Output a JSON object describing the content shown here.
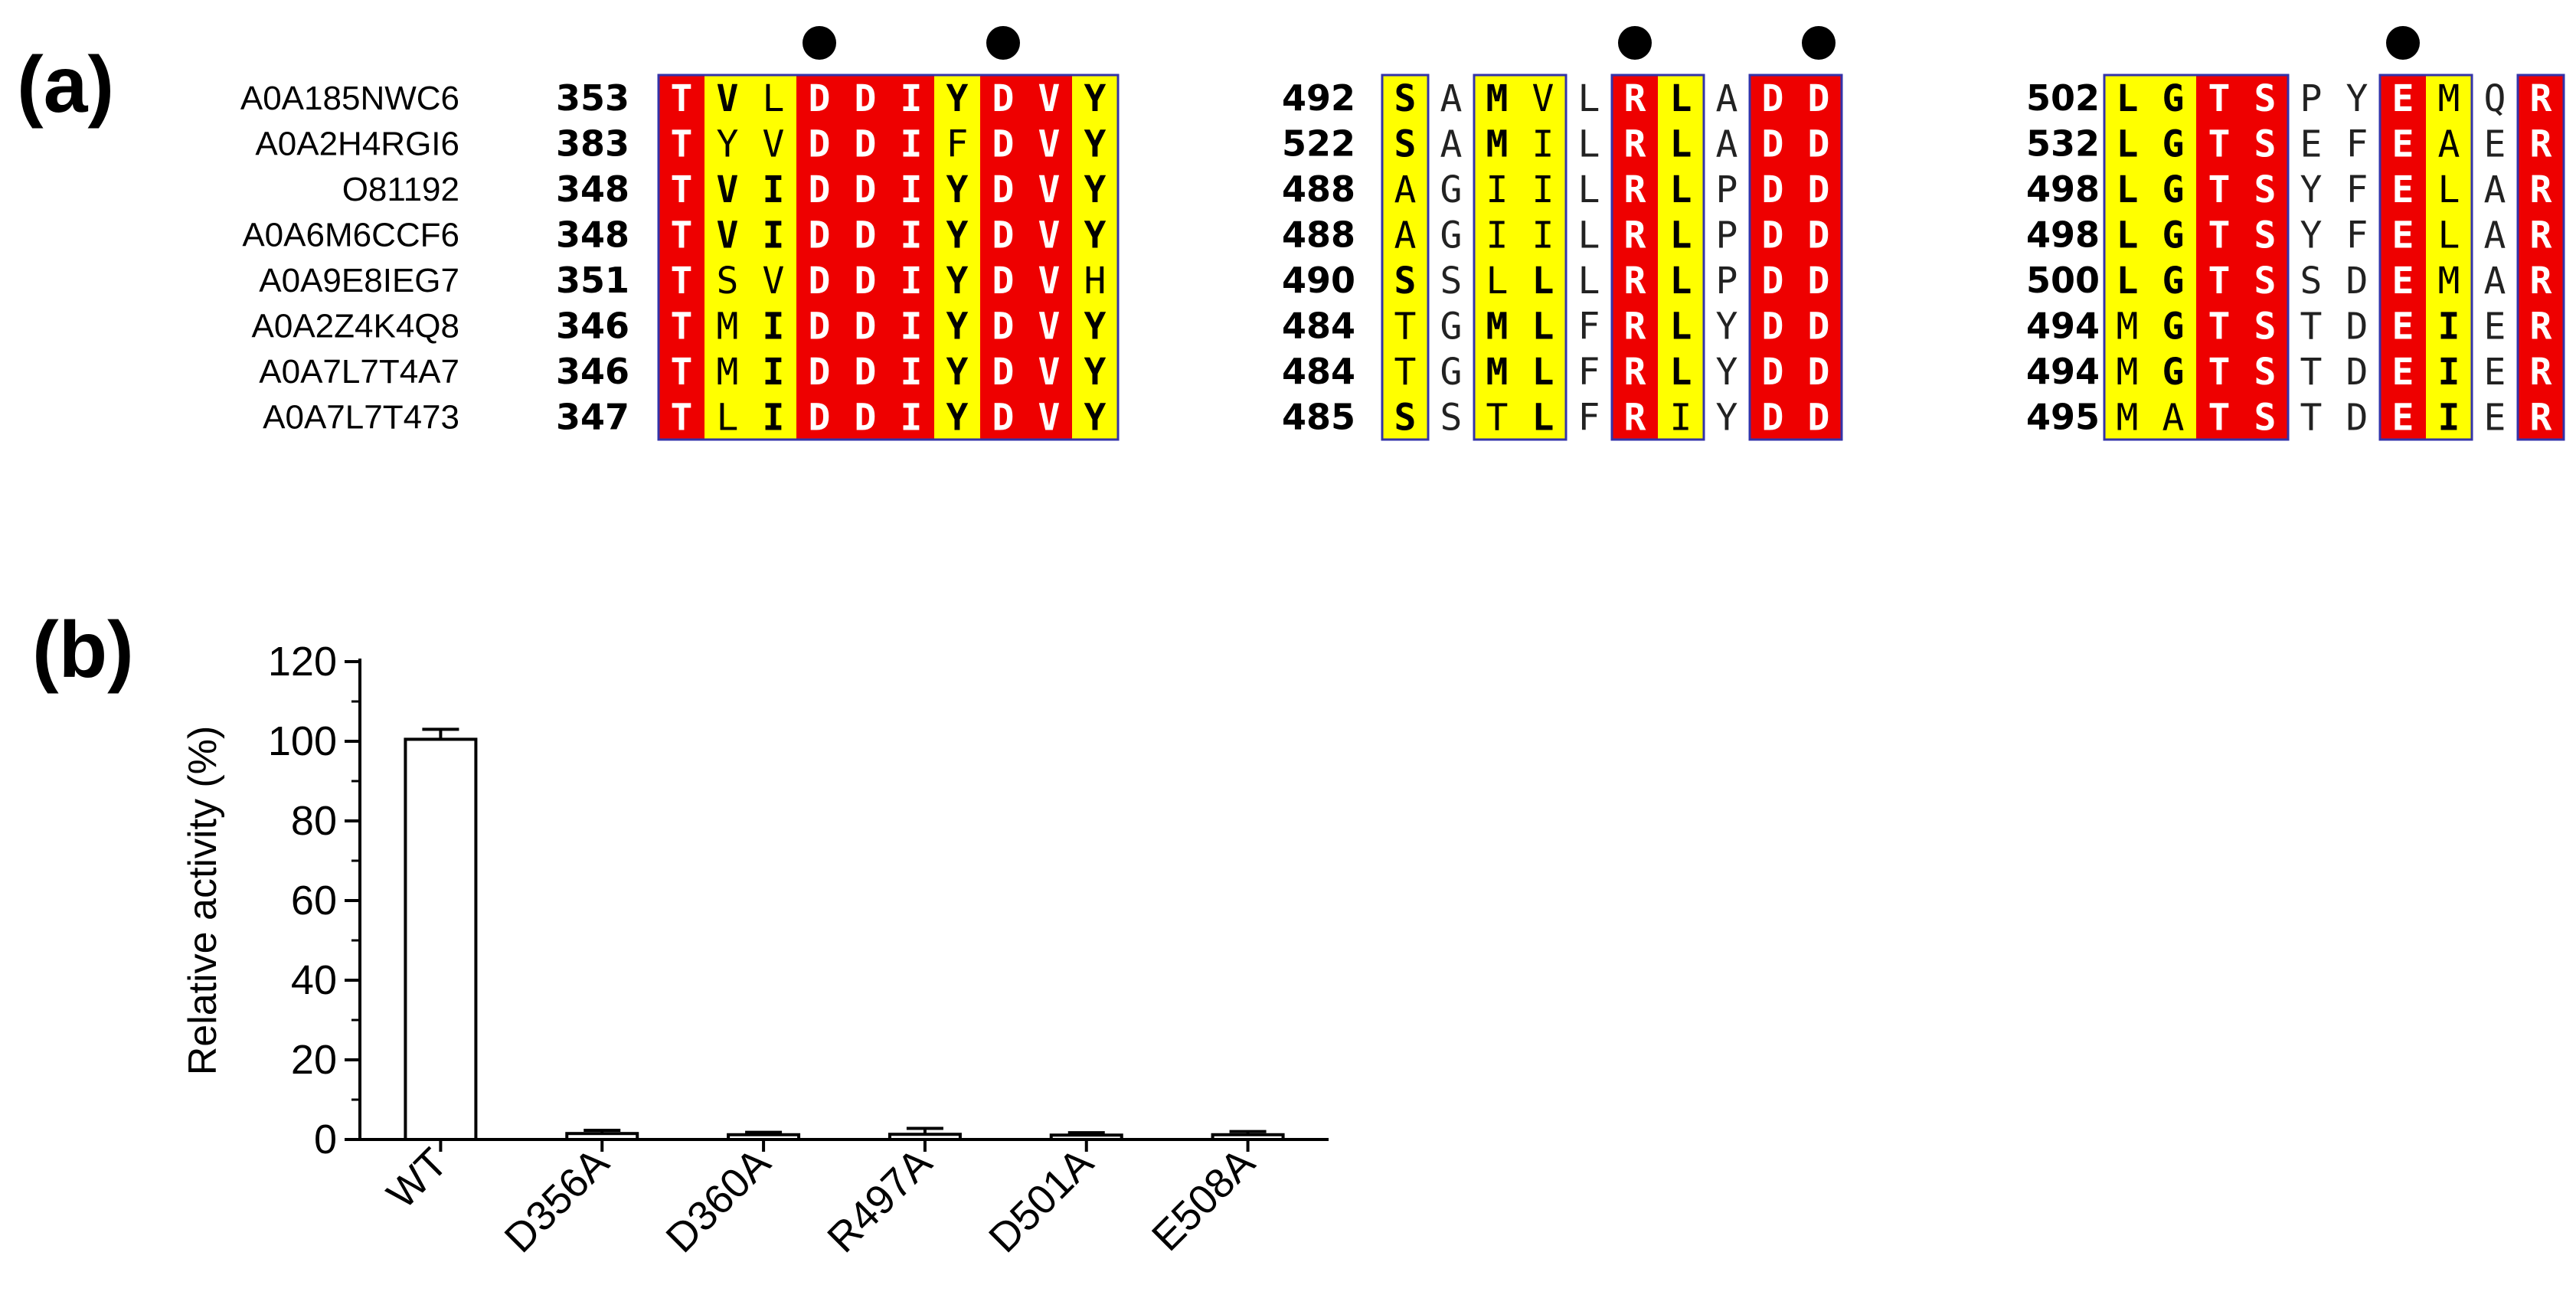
{
  "panel_a": {
    "label": "(a)",
    "species": [
      "A0A185NWC6",
      "A0A2H4RGI6",
      "O81192",
      "A0A6M6CCF6",
      "A0A9E8IEG7",
      "A0A2Z4K4Q8",
      "A0A7L7T4A7",
      "A0A7L7T473"
    ],
    "blocks": [
      {
        "positions": [
          "353",
          "383",
          "348",
          "348",
          "351",
          "346",
          "346",
          "347"
        ],
        "sequences": [
          "TVLDDIYDVY",
          "TYVDDIFDVY",
          "TVIDDIYDVY",
          "TVIDDIYDVY",
          "TSVDDIYDVH",
          "TMIDDIYDVY",
          "TMIDDIYDVY",
          "TLIDDIYDVY"
        ],
        "column_styles": [
          "red",
          "yellow",
          "yellow",
          "red",
          "red",
          "red",
          "yellow",
          "red",
          "red",
          "yellow"
        ],
        "marked_columns": [
          3,
          7
        ]
      },
      {
        "positions": [
          "492",
          "522",
          "488",
          "488",
          "490",
          "484",
          "484",
          "485"
        ],
        "sequences": [
          "SAMVLRLADD",
          "SAMILRLADD",
          "AGIILRLPDD",
          "AGIILRLPDD",
          "SSLLLRLPDD",
          "TGMLFRLYDD",
          "TGMLFRLYDD",
          "SSTLFRIYDD"
        ],
        "column_styles": [
          "yellow",
          "none",
          "yellow",
          "yellow",
          "none",
          "red",
          "yellow",
          "none",
          "red",
          "red"
        ],
        "marked_columns": [
          5,
          9
        ]
      },
      {
        "positions": [
          "502",
          "532",
          "498",
          "498",
          "500",
          "494",
          "494",
          "495"
        ],
        "sequences": [
          "LGTSPYEMQR",
          "LGTSEFEAER",
          "LGTSYFELAR",
          "LGTSYFELAR",
          "LGTSSDEMAR",
          "MGTSTDEIER",
          "MGTSTDEIER",
          "MATSTDEIER"
        ],
        "column_styles": [
          "yellow",
          "yellow",
          "red",
          "red",
          "none",
          "none",
          "red",
          "yellow",
          "none",
          "red"
        ],
        "marked_columns": [
          6
        ]
      }
    ],
    "colors": {
      "conserved": "#ee0000",
      "similar": "#ffff00",
      "box": "#3333aa"
    }
  },
  "panel_b": {
    "label": "(b)",
    "chart_data": {
      "type": "bar",
      "categories": [
        "WT",
        "D356A",
        "D360A",
        "R497A",
        "D501A",
        "E508A"
      ],
      "values": [
        100.5,
        1.5,
        1.2,
        1.3,
        1.1,
        1.2
      ],
      "errors": [
        2.5,
        0.8,
        0.6,
        1.5,
        0.6,
        0.8
      ],
      "ylabel": "Relative activity (%)",
      "xlabel": "",
      "ylim": [
        0,
        120
      ],
      "yticks": [
        "0",
        "20",
        "40",
        "60",
        "80",
        "100",
        "120"
      ],
      "grid": false
    }
  }
}
